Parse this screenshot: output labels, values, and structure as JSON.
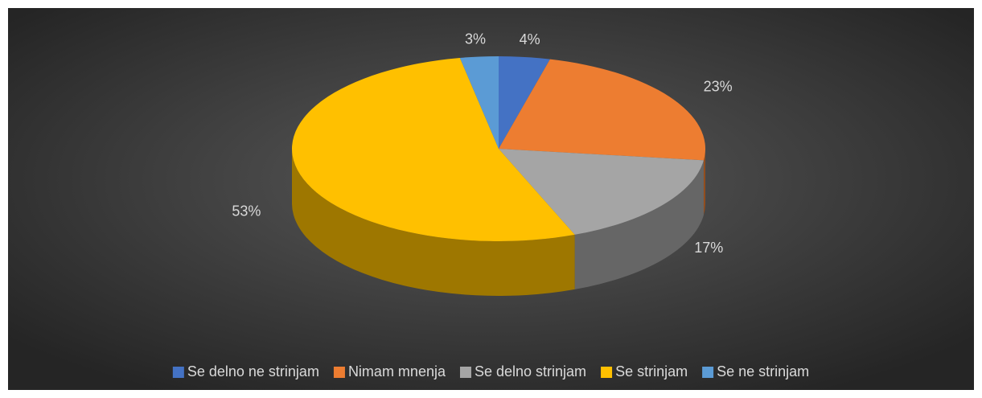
{
  "chart_data": {
    "type": "pie3d",
    "categories": [
      "Se delno ne strinjam",
      "Nimam mnenja",
      "Se delno strinjam",
      "Se strinjam",
      "Se ne strinjam"
    ],
    "values": [
      4,
      23,
      17,
      53,
      3
    ],
    "value_labels": [
      "4%",
      "23%",
      "17%",
      "53%",
      "3%"
    ],
    "colors": [
      "#4472c4",
      "#ed7d31",
      "#a5a5a5",
      "#ffc000",
      "#5b9bd5"
    ],
    "legend": "bottom"
  }
}
